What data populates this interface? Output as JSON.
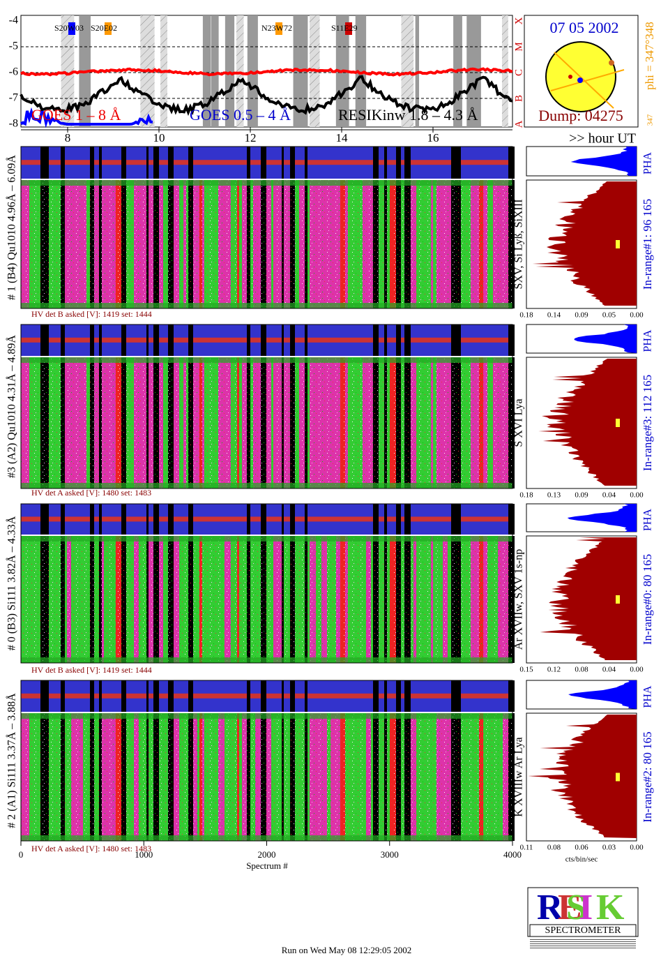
{
  "goes": {
    "yticks": [
      "-4",
      "-5",
      "-6",
      "-7",
      "-8"
    ],
    "classes": [
      "X",
      "M",
      "C",
      "B",
      "A"
    ],
    "regions": [
      "S20W03",
      "S20E02",
      "N23W72",
      "S11E29"
    ],
    "legend": [
      "GOES 1 – 8 Å",
      "GOES 0.5 – 4 Å",
      "RESIKinw 1.8 – 4.3 Å"
    ]
  },
  "sun": {
    "date": "07 05 2002",
    "dump": "Dump: 04275",
    "phi": "phi = 347°348",
    "phi_small": "347"
  },
  "hours": [
    "8",
    "10",
    "12",
    "14",
    "16"
  ],
  "hour_label": ">> hour UT",
  "panels": [
    {
      "label": "# 1 (B4) Qu1010 4.96Å – 6.09Å",
      "hv": "HV det B asked [V]:  1419 set:  1444",
      "lines": "SXV, Si Lyß, SiXIII",
      "pha": "PHA",
      "in_range": "In-range#1:   96 165",
      "xticks": [
        "0.18",
        "0.14",
        "0.09",
        "0.05",
        "0.00"
      ]
    },
    {
      "label": "#3 (A2) Qu1010  4.31Å – 4.89Å",
      "hv": "HV det A asked [V]:  1480 set:  1483",
      "lines": "S XVI Lya",
      "pha": "PHA",
      "in_range": "In-range#3:   112 165",
      "xticks": [
        "0.18",
        "0.13",
        "0.09",
        "0.04",
        "0.00"
      ]
    },
    {
      "label": "# 0 (B3) Si111  3.82Å – 4.33Å",
      "hv": "HV det B asked [V]:  1419 set:  1444",
      "lines": "Ar XVIIw,  SXV 1s-np",
      "pha": "PHA",
      "in_range": "In-range#0:   80 165",
      "xticks": [
        "0.15",
        "0.12",
        "0.08",
        "0.04",
        "0.00"
      ]
    },
    {
      "label": "# 2 (A1) Si111  3.37Å – 3.88Å",
      "hv": "HV det A asked [V]:  1480 set:  1483",
      "lines": "K XVIIIw   Ar Lya",
      "pha": "PHA",
      "in_range": "In-range#2:   80 165",
      "xticks": [
        "0.11",
        "0.08",
        "0.06",
        "0.03",
        "0.00"
      ]
    }
  ],
  "spectrum_ticks": [
    "0",
    "1000",
    "2000",
    "3000",
    "4000"
  ],
  "spectrum_label": "Spectrum #",
  "cts_label": "cts/bin/sec",
  "logo": "SPECTROMETER",
  "footer": "Run on Wed May 08 12:29:05 2002"
}
